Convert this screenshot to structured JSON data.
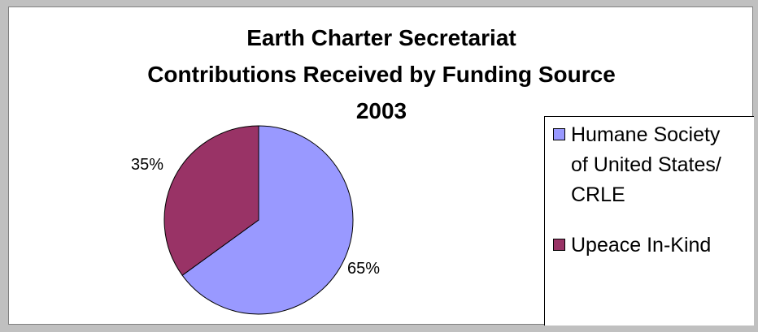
{
  "chart_data": {
    "type": "pie",
    "title": "Earth Charter Secretariat",
    "subtitle": "Contributions Received by Funding Source",
    "year": "2003",
    "categories": [
      "Humane Society of United States/ CRLE",
      "Upeace In-Kind"
    ],
    "legend_lines": [
      [
        "Humane Society",
        "of United States/",
        "CRLE"
      ],
      [
        "Upeace In-Kind"
      ]
    ],
    "values": [
      65,
      35
    ],
    "value_labels": [
      "65%",
      "35%"
    ],
    "colors": [
      "#9999ff",
      "#993366"
    ],
    "legend_position": "right"
  }
}
